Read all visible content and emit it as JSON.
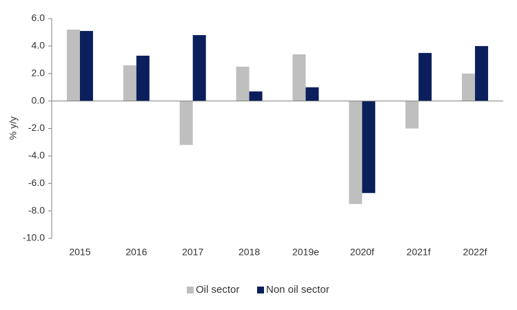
{
  "chart_data": {
    "type": "bar",
    "categories": [
      "2015",
      "2016",
      "2017",
      "2018",
      "2019e",
      "2020f",
      "2021f",
      "2022f"
    ],
    "series": [
      {
        "name": "Oil sector",
        "color": "#bfbfbf",
        "values": [
          5.2,
          2.6,
          -3.2,
          2.5,
          3.4,
          -7.5,
          -2.0,
          2.0
        ]
      },
      {
        "name": "Non oil sector",
        "color": "#0b1f5c",
        "values": [
          5.1,
          3.3,
          4.8,
          0.7,
          1.0,
          -6.7,
          3.5,
          4.0
        ]
      }
    ],
    "ylabel": "% y/y",
    "xlabel": "",
    "title": "",
    "ylim": [
      -10.0,
      6.0
    ],
    "yticks": [
      "6.0",
      "4.0",
      "2.0",
      "0.0",
      "-2.0",
      "-4.0",
      "-6.0",
      "-8.0",
      "-10.0"
    ],
    "grid": false,
    "legend_position": "bottom"
  }
}
